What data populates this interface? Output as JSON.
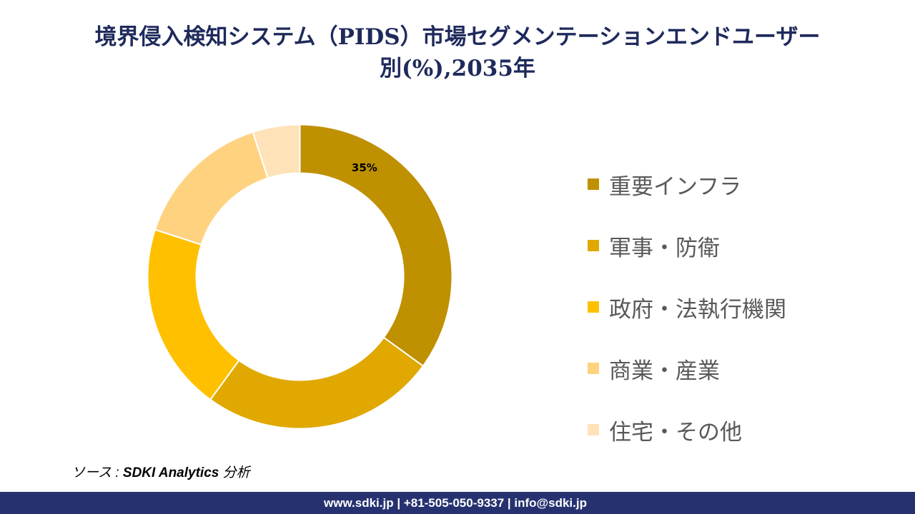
{
  "title_line1": "境界侵入検知システム（PIDS）市場セグメンテーションエンドユーザー",
  "title_line2": "別(%),2035年",
  "chart_data": {
    "type": "pie",
    "variant": "donut",
    "categories": [
      "重要インフラ",
      "軍事・防衛",
      "政府・法執行機関",
      "商業・産業",
      "住宅・その他"
    ],
    "values": [
      35,
      25,
      20,
      15,
      5
    ],
    "colors": [
      "#BF9000",
      "#E0A800",
      "#FFC000",
      "#FFD280",
      "#FFE2B8"
    ],
    "data_labels": [
      "35%",
      "",
      "",
      "",
      ""
    ],
    "legend_position": "right"
  },
  "source": {
    "prefix": "ソース : ",
    "name": "SDKI Analytics",
    "suffix": " 分析"
  },
  "footer": "www.sdki.jp | +81-505-050-9337 | info@sdki.jp"
}
